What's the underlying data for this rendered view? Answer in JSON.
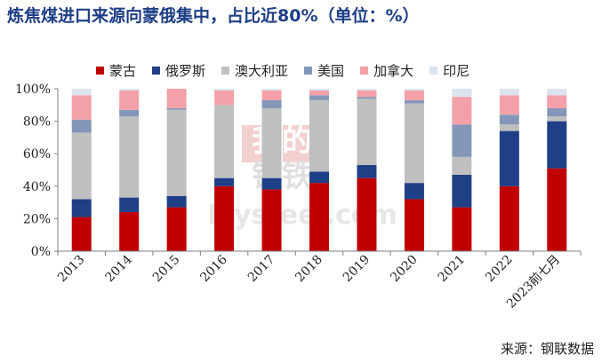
{
  "title": "炼焦煤进口来源向蒙俄集中，占比近80%（单位：%）",
  "source": "来源：钢联数据",
  "watermark": {
    "line1": "我的",
    "line2": "钢铁",
    "brand": "Mysteel.com"
  },
  "chart_data": {
    "type": "bar",
    "stacked": true,
    "categories": [
      "2013",
      "2014",
      "2015",
      "2016",
      "2017",
      "2018",
      "2019",
      "2020",
      "2021",
      "2022",
      "2023前七月"
    ],
    "yticks": [
      "0%",
      "20%",
      "40%",
      "60%",
      "80%",
      "100%"
    ],
    "ylim": [
      0,
      100
    ],
    "legend_position": "top",
    "series": [
      {
        "name": "蒙古",
        "color": "#c00000",
        "values": [
          21,
          24,
          27,
          40,
          38,
          42,
          45,
          32,
          27,
          40,
          51
        ]
      },
      {
        "name": "俄罗斯",
        "color": "#1f3f86",
        "values": [
          11,
          9,
          7,
          5,
          7,
          7,
          8,
          10,
          20,
          34,
          29
        ]
      },
      {
        "name": "澳大利亚",
        "color": "#bfbfbf",
        "values": [
          41,
          50,
          53,
          45,
          43,
          44,
          41,
          49,
          11,
          4,
          3
        ]
      },
      {
        "name": "美国",
        "color": "#8497b9",
        "values": [
          8,
          4,
          1,
          0,
          5,
          3,
          1,
          2,
          20,
          6,
          5
        ]
      },
      {
        "name": "加拿大",
        "color": "#f4a0a8",
        "values": [
          15,
          12,
          12,
          9,
          6,
          3,
          4,
          6,
          17,
          12,
          8
        ]
      },
      {
        "name": "印尼",
        "color": "#dbe3ef",
        "values": [
          4,
          1,
          0,
          1,
          1,
          1,
          1,
          1,
          5,
          4,
          4
        ]
      }
    ]
  }
}
